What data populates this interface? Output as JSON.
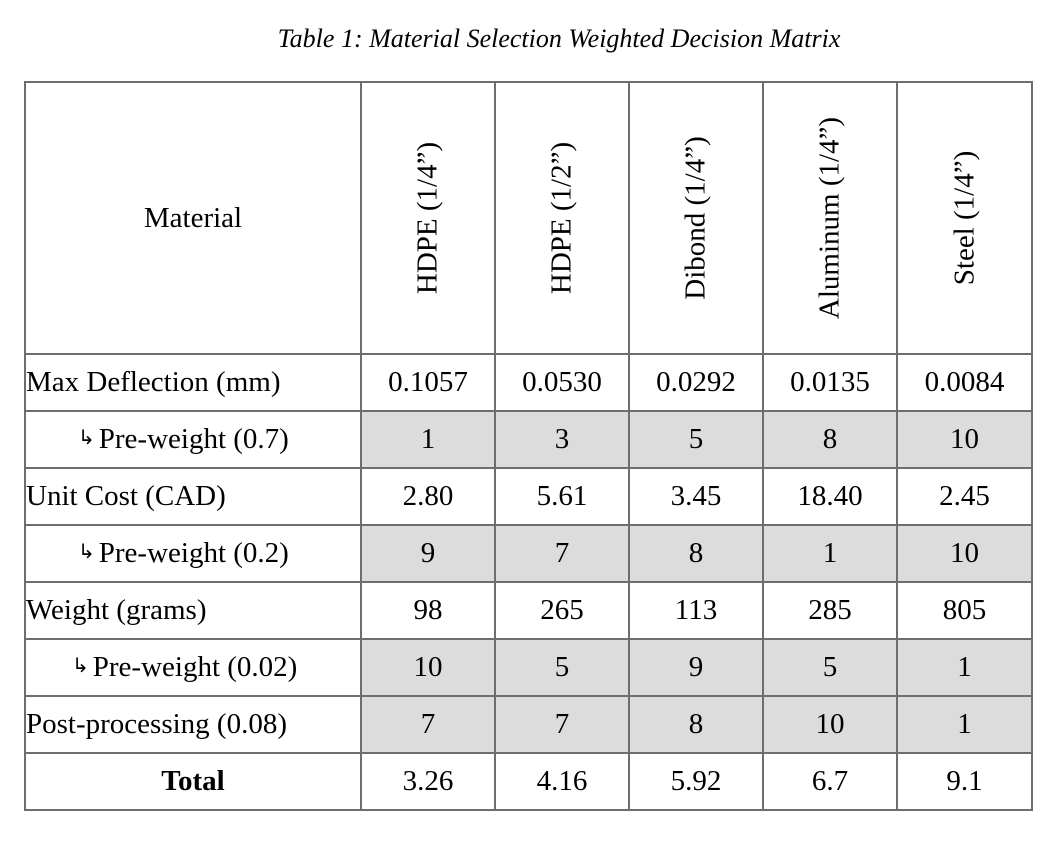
{
  "caption": "Table 1: Material Selection Weighted Decision Matrix",
  "header": {
    "label": "Material",
    "materials": [
      "HDPE (1/4”)",
      "HDPE (1/2”)",
      "Dibond (1/4”)",
      "Aluminum (1/4”)",
      "Steel (1/4”)"
    ]
  },
  "arrow_glyph": "↳",
  "rows": [
    {
      "label": "Max Deflection (mm)",
      "values": [
        "0.1057",
        "0.0530",
        "0.0292",
        "0.0135",
        "0.0084"
      ]
    },
    {
      "label": "Pre-weight (0.7)",
      "values": [
        "1",
        "3",
        "5",
        "8",
        "10"
      ]
    },
    {
      "label": "Unit Cost (CAD)",
      "values": [
        "2.80",
        "5.61",
        "3.45",
        "18.40",
        "2.45"
      ]
    },
    {
      "label": "Pre-weight (0.2)",
      "values": [
        "9",
        "7",
        "8",
        "1",
        "10"
      ]
    },
    {
      "label": "Weight (grams)",
      "values": [
        "98",
        "265",
        "113",
        "285",
        "805"
      ]
    },
    {
      "label": "Pre-weight (0.02)",
      "values": [
        "10",
        "5",
        "9",
        "5",
        "1"
      ]
    },
    {
      "label": "Post-processing (0.08)",
      "values": [
        "7",
        "7",
        "8",
        "10",
        "1"
      ]
    },
    {
      "label": "Total",
      "values": [
        "3.26",
        "4.16",
        "5.92",
        "6.7",
        "9.1"
      ]
    }
  ],
  "colors": {
    "border": "#6e6e6e",
    "shaded_cell": "#dcdcdc"
  }
}
